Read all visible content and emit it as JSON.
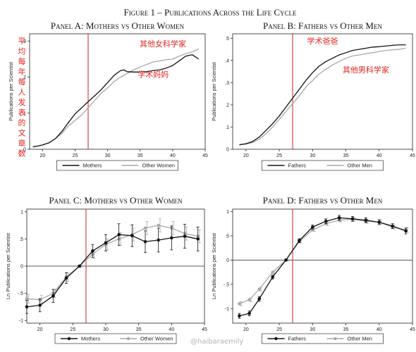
{
  "figure_title": "Figure 1 – Publications Across the Life Cycle",
  "watermark": "@haibaraemily",
  "colors": {
    "primary": "#111111",
    "secondary": "#a8a8a8",
    "vline": "#cc2222",
    "annotation": "#e5251f"
  },
  "chart_data": [
    {
      "id": "A",
      "type": "line",
      "title": "Panel A: Mothers vs Other Women",
      "ylabel": "Publications per Scientist",
      "xlim": [
        18,
        45
      ],
      "ylim": [
        0,
        0.32
      ],
      "xticks": [
        20,
        25,
        30,
        35,
        40,
        45
      ],
      "xtick_labels": [
        "20",
        "25",
        "30",
        "35",
        "40",
        "45"
      ],
      "yticks": [
        0,
        0.1,
        0.2,
        0.3
      ],
      "ytick_labels": [
        "0",
        ".1",
        ".2",
        ".3"
      ],
      "vline_x": 27,
      "zero_line": false,
      "legend": [
        "Mothers",
        "Other Women"
      ],
      "series": [
        {
          "name": "Mothers",
          "color": "#111111",
          "points": [
            [
              18.5,
              0.007
            ],
            [
              19,
              0.008
            ],
            [
              20,
              0.012
            ],
            [
              21,
              0.018
            ],
            [
              22,
              0.03
            ],
            [
              23,
              0.05
            ],
            [
              24,
              0.075
            ],
            [
              25,
              0.098
            ],
            [
              26,
              0.115
            ],
            [
              27,
              0.132
            ],
            [
              28,
              0.148
            ],
            [
              29,
              0.165
            ],
            [
              30,
              0.185
            ],
            [
              31,
              0.205
            ],
            [
              32,
              0.218
            ],
            [
              32.5,
              0.22
            ],
            [
              33,
              0.215
            ],
            [
              34,
              0.214
            ],
            [
              35,
              0.214
            ],
            [
              36,
              0.215
            ],
            [
              37,
              0.218
            ],
            [
              38,
              0.22
            ],
            [
              39,
              0.225
            ],
            [
              40,
              0.232
            ],
            [
              41,
              0.245
            ],
            [
              42,
              0.258
            ],
            [
              43,
              0.262
            ],
            [
              44,
              0.25
            ]
          ]
        },
        {
          "name": "Other Women",
          "color": "#a8a8a8",
          "points": [
            [
              18.5,
              0.006
            ],
            [
              19,
              0.008
            ],
            [
              20,
              0.012
            ],
            [
              21,
              0.018
            ],
            [
              22,
              0.03
            ],
            [
              23,
              0.045
            ],
            [
              24,
              0.065
            ],
            [
              25,
              0.08
            ],
            [
              26,
              0.095
            ],
            [
              27,
              0.115
            ],
            [
              28,
              0.135
            ],
            [
              29,
              0.155
            ],
            [
              30,
              0.17
            ],
            [
              31,
              0.188
            ],
            [
              32,
              0.2
            ],
            [
              33,
              0.21
            ],
            [
              34,
              0.22
            ],
            [
              35,
              0.228
            ],
            [
              36,
              0.235
            ],
            [
              37,
              0.242
            ],
            [
              38,
              0.245
            ],
            [
              39,
              0.248
            ],
            [
              40,
              0.25
            ],
            [
              41,
              0.258
            ],
            [
              42,
              0.265
            ],
            [
              43,
              0.27
            ],
            [
              44,
              0.278
            ]
          ]
        }
      ],
      "annotations": [
        {
          "text": "其他女科学家",
          "x": 38.5,
          "y": 0.285
        },
        {
          "text": "学术妈妈",
          "x": 37,
          "y": 0.2
        }
      ],
      "vertical_note": "平均每年每人发表的文章数"
    },
    {
      "id": "B",
      "type": "line",
      "title": "Panel B: Fathers vs Other Men",
      "ylabel": "Publications per Scientist",
      "xlim": [
        18,
        45
      ],
      "ylim": [
        0,
        0.52
      ],
      "xticks": [
        20,
        25,
        30,
        35,
        40,
        45
      ],
      "xtick_labels": [
        "20",
        "25",
        "30",
        "35",
        "40",
        "45"
      ],
      "yticks": [
        0,
        0.1,
        0.2,
        0.3,
        0.4,
        0.5
      ],
      "ytick_labels": [
        "0",
        ".1",
        ".2",
        ".3",
        ".4",
        ".5"
      ],
      "vline_x": 27,
      "zero_line": false,
      "legend": [
        "Fathers",
        "Other Men"
      ],
      "series": [
        {
          "name": "Fathers",
          "color": "#111111",
          "points": [
            [
              19,
              0.02
            ],
            [
              20,
              0.025
            ],
            [
              21,
              0.035
            ],
            [
              22,
              0.055
            ],
            [
              23,
              0.085
            ],
            [
              24,
              0.115
            ],
            [
              25,
              0.15
            ],
            [
              26,
              0.19
            ],
            [
              27,
              0.23
            ],
            [
              28,
              0.27
            ],
            [
              29,
              0.31
            ],
            [
              30,
              0.345
            ],
            [
              31,
              0.375
            ],
            [
              32,
              0.395
            ],
            [
              33,
              0.41
            ],
            [
              34,
              0.425
            ],
            [
              35,
              0.435
            ],
            [
              36,
              0.445
            ],
            [
              37,
              0.45
            ],
            [
              38,
              0.455
            ],
            [
              39,
              0.46
            ],
            [
              40,
              0.462
            ],
            [
              41,
              0.465
            ],
            [
              42,
              0.468
            ],
            [
              43,
              0.47
            ],
            [
              44,
              0.47
            ]
          ]
        },
        {
          "name": "Other Men",
          "color": "#a8a8a8",
          "points": [
            [
              19,
              0.02
            ],
            [
              20,
              0.023
            ],
            [
              21,
              0.03
            ],
            [
              22,
              0.045
            ],
            [
              23,
              0.07
            ],
            [
              24,
              0.1
            ],
            [
              25,
              0.135
            ],
            [
              26,
              0.17
            ],
            [
              27,
              0.205
            ],
            [
              28,
              0.24
            ],
            [
              29,
              0.28
            ],
            [
              30,
              0.31
            ],
            [
              31,
              0.34
            ],
            [
              32,
              0.36
            ],
            [
              33,
              0.38
            ],
            [
              34,
              0.395
            ],
            [
              35,
              0.41
            ],
            [
              36,
              0.42
            ],
            [
              37,
              0.425
            ],
            [
              38,
              0.43
            ],
            [
              39,
              0.435
            ],
            [
              40,
              0.44
            ],
            [
              41,
              0.445
            ],
            [
              42,
              0.448
            ],
            [
              43,
              0.45
            ],
            [
              44,
              0.455
            ]
          ]
        }
      ],
      "annotations": [
        {
          "text": "学术爸爸",
          "x": 31.5,
          "y": 0.475
        },
        {
          "text": "其他男科学家",
          "x": 38,
          "y": 0.345
        }
      ]
    },
    {
      "id": "C",
      "type": "line",
      "title": "Panel C: Mothers vs Other Women",
      "ylabel": "Ln Publications per Scientist",
      "xlim": [
        18,
        45
      ],
      "ylim": [
        -1.05,
        1.05
      ],
      "xticks": [
        20,
        25,
        30,
        35,
        40,
        45
      ],
      "xtick_labels": [
        "20",
        "25",
        "30",
        "35",
        "40",
        "45"
      ],
      "yticks": [
        -1,
        -0.5,
        0,
        0.5,
        1
      ],
      "ytick_labels": [
        "-1",
        "-.5",
        "0",
        ".5",
        "1"
      ],
      "vline_x": 27,
      "zero_line": true,
      "markers": true,
      "legend": [
        "Mothers",
        "Other Women"
      ],
      "series": [
        {
          "name": "Mothers",
          "color": "#111111",
          "points": [
            [
              18,
              -0.75
            ],
            [
              20,
              -0.72
            ],
            [
              22,
              -0.55
            ],
            [
              24,
              -0.22
            ],
            [
              26,
              0
            ],
            [
              28,
              0.28
            ],
            [
              30,
              0.43
            ],
            [
              32,
              0.58
            ],
            [
              34,
              0.56
            ],
            [
              36,
              0.45
            ],
            [
              38,
              0.48
            ],
            [
              40,
              0.52
            ],
            [
              42,
              0.55
            ],
            [
              44,
              0.5
            ]
          ],
          "err": [
            0.12,
            0.12,
            0.12,
            0.1,
            0.02,
            0.12,
            0.15,
            0.2,
            0.2,
            0.2,
            0.22,
            0.22,
            0.22,
            0.22
          ]
        },
        {
          "name": "Other Women",
          "color": "#a8a8a8",
          "points": [
            [
              18,
              -0.6
            ],
            [
              20,
              -0.62
            ],
            [
              22,
              -0.5
            ],
            [
              24,
              -0.2
            ],
            [
              26,
              0
            ],
            [
              28,
              0.22
            ],
            [
              30,
              0.4
            ],
            [
              32,
              0.5
            ],
            [
              34,
              0.58
            ],
            [
              36,
              0.7
            ],
            [
              38,
              0.75
            ],
            [
              40,
              0.7
            ],
            [
              42,
              0.6
            ],
            [
              44,
              0.55
            ]
          ],
          "err": [
            0.08,
            0.08,
            0.08,
            0.08,
            0.02,
            0.08,
            0.1,
            0.12,
            0.12,
            0.12,
            0.12,
            0.12,
            0.12,
            0.12
          ]
        }
      ]
    },
    {
      "id": "D",
      "type": "line",
      "title": "Panel D: Fathers vs Other Men",
      "ylabel": "Ln Publications per Scientist",
      "xlim": [
        18,
        45
      ],
      "ylim": [
        -1.3,
        1.05
      ],
      "xticks": [
        20,
        25,
        30,
        35,
        40,
        45
      ],
      "xtick_labels": [
        "20",
        "25",
        "30",
        "35",
        "40",
        "45"
      ],
      "yticks": [
        -1,
        -0.5,
        0,
        0.5,
        1
      ],
      "ytick_labels": [
        "-1",
        "-.5",
        "0",
        ".5",
        "1"
      ],
      "vline_x": 27,
      "zero_line": true,
      "markers": true,
      "legend": [
        "Fathers",
        "Other Men"
      ],
      "series": [
        {
          "name": "Fathers",
          "color": "#111111",
          "points": [
            [
              19,
              -1.15
            ],
            [
              20.5,
              -1.1
            ],
            [
              22,
              -0.8
            ],
            [
              24,
              -0.35
            ],
            [
              26,
              0
            ],
            [
              28,
              0.4
            ],
            [
              30,
              0.68
            ],
            [
              32,
              0.8
            ],
            [
              34,
              0.87
            ],
            [
              36,
              0.85
            ],
            [
              38,
              0.82
            ],
            [
              40,
              0.78
            ],
            [
              42,
              0.7
            ],
            [
              44,
              0.6
            ]
          ],
          "err": [
            0.05,
            0.05,
            0.05,
            0.04,
            0.02,
            0.04,
            0.04,
            0.05,
            0.05,
            0.05,
            0.05,
            0.05,
            0.05,
            0.06
          ]
        },
        {
          "name": "Other Men",
          "color": "#a8a8a8",
          "points": [
            [
              19,
              -0.9
            ],
            [
              20.5,
              -0.82
            ],
            [
              22,
              -0.6
            ],
            [
              24,
              -0.25
            ],
            [
              26,
              0
            ],
            [
              28,
              0.38
            ],
            [
              30,
              0.62
            ],
            [
              32,
              0.75
            ],
            [
              34,
              0.82
            ],
            [
              36,
              0.84
            ],
            [
              38,
              0.8
            ],
            [
              40,
              0.78
            ],
            [
              42,
              0.68
            ],
            [
              44,
              0.62
            ]
          ],
          "err": [
            0.04,
            0.04,
            0.04,
            0.03,
            0.02,
            0.03,
            0.03,
            0.04,
            0.04,
            0.04,
            0.04,
            0.04,
            0.04,
            0.05
          ]
        }
      ]
    }
  ]
}
